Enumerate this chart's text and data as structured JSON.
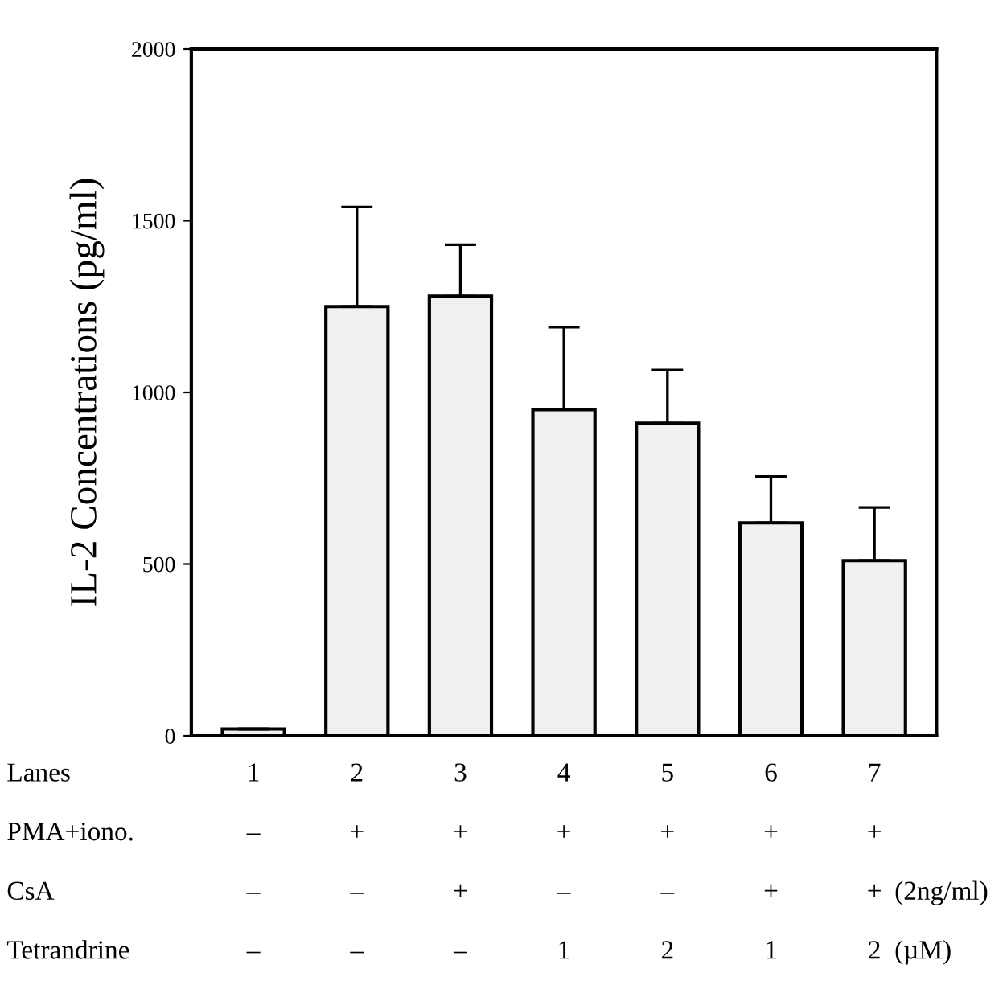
{
  "chart_data": {
    "type": "bar",
    "ylabel": "IL-2 Concentrations (pg/ml)",
    "xlabel": "Lanes\nPMA+iono.\nCsA\nTetrandrine",
    "categories": [
      "1\n–\n–\n–",
      "2\n+\n–\n–",
      "3\n+\n+\n–",
      "4\n+\n–\n1",
      "5\n+\n–\n2",
      "6\n+\n+\n1",
      "7\n+\n+\n2"
    ],
    "values": [
      20,
      1250,
      1280,
      950,
      910,
      620,
      510
    ],
    "errors": [
      null,
      [
        1250,
        1540
      ],
      [
        1280,
        1430
      ],
      [
        950,
        1190
      ],
      [
        910,
        1065
      ],
      [
        620,
        755
      ],
      [
        510,
        665
      ]
    ],
    "color": "#f0f0f0",
    "ylim": [
      0,
      2000
    ],
    "yticks": [
      0,
      500,
      1000,
      1500,
      2000
    ],
    "grid": false,
    "annotations": [
      "(2ng/ml)",
      "(µM)"
    ]
  }
}
